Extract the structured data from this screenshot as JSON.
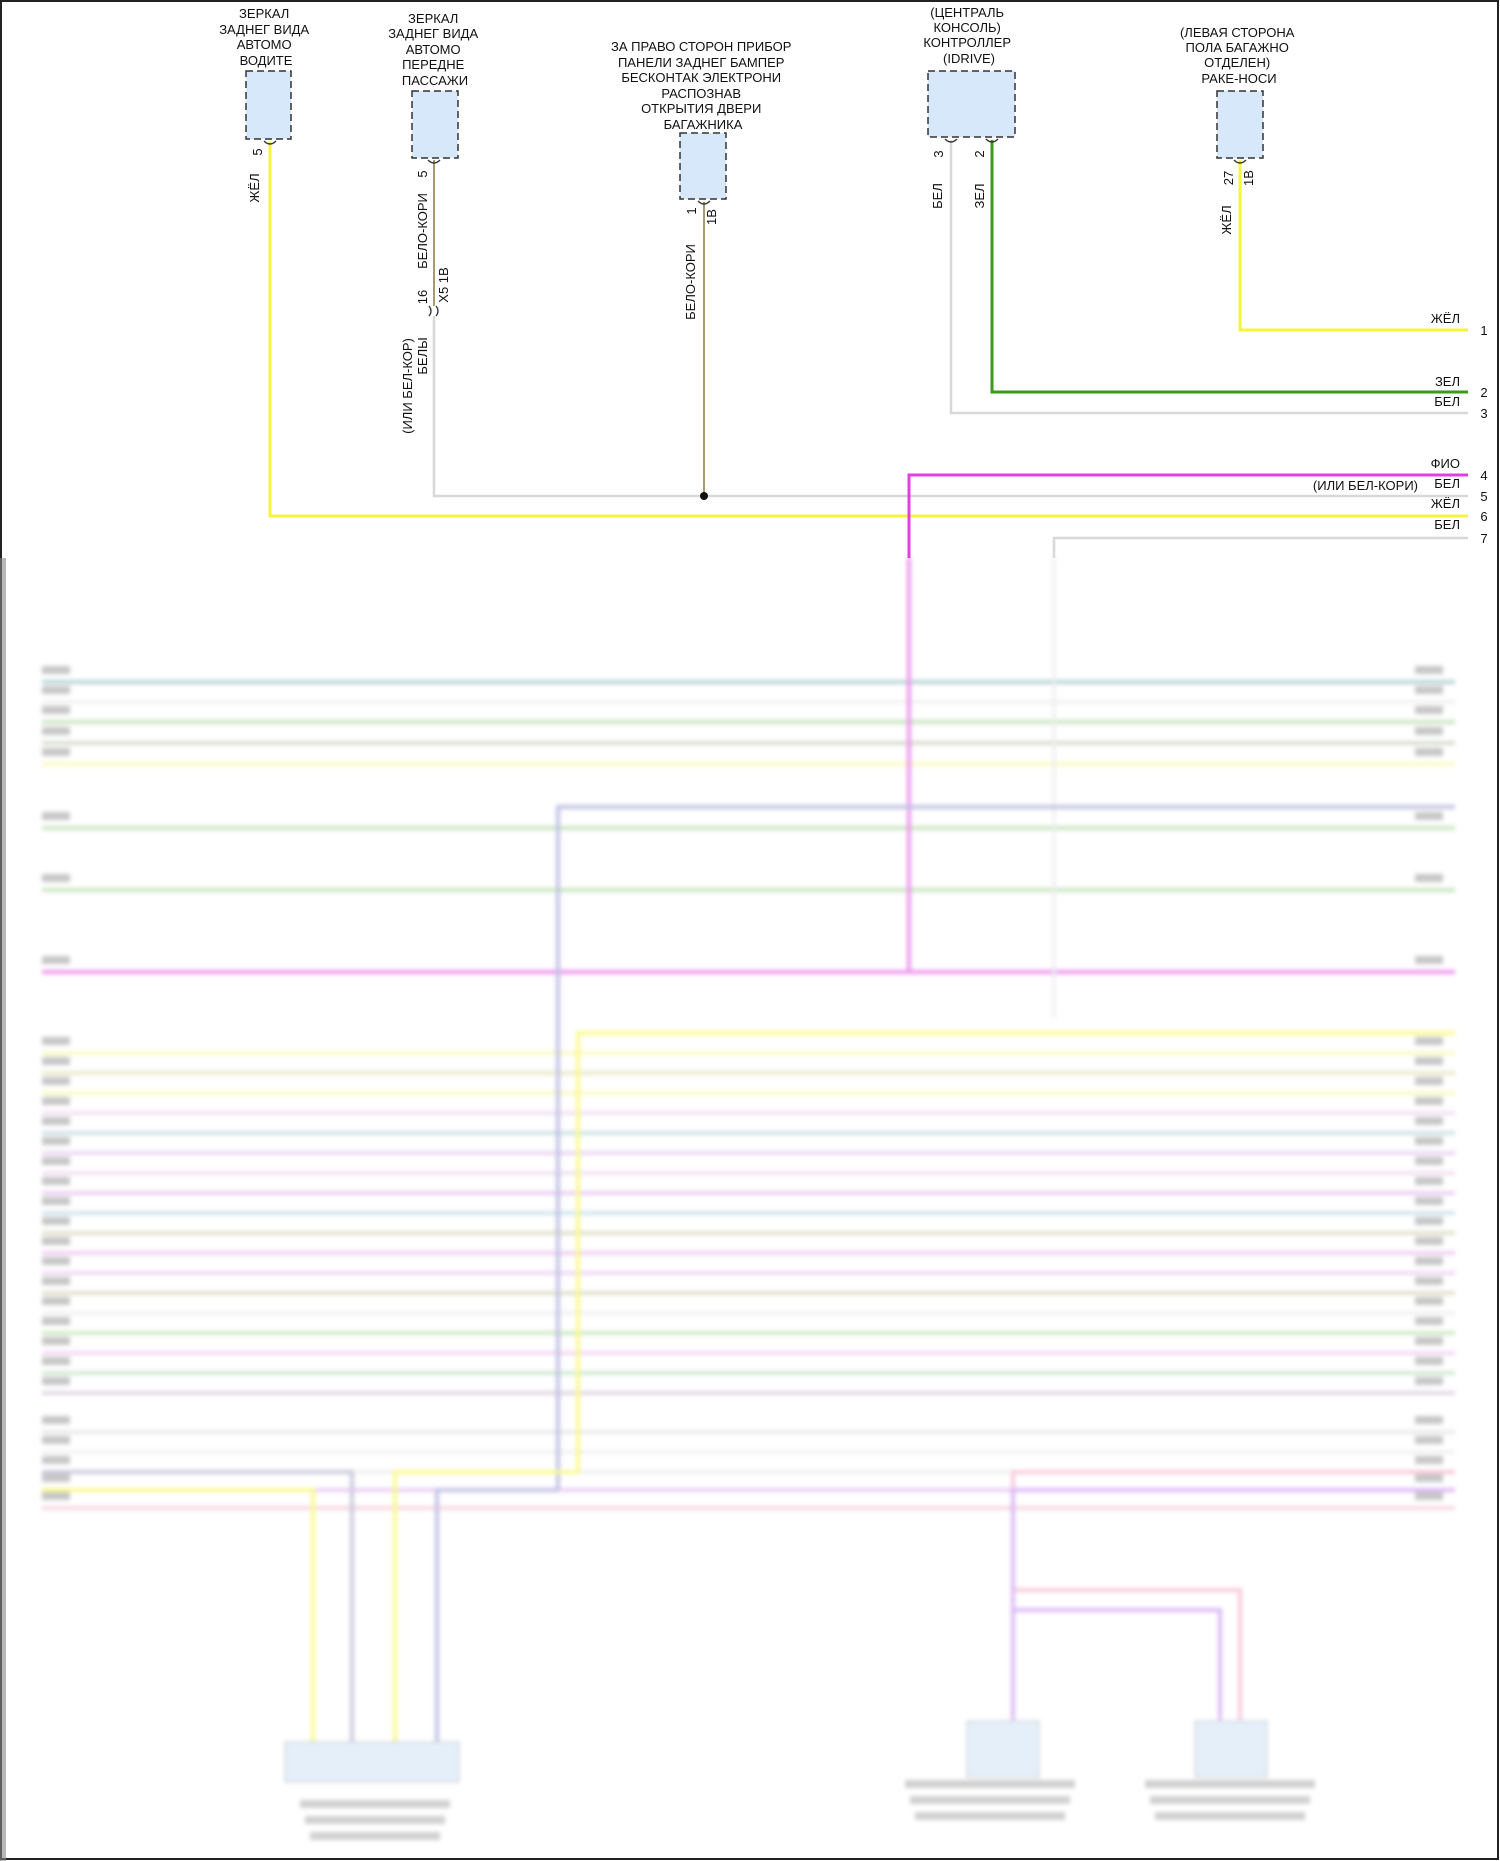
{
  "components": [
    {
      "name_lines": [
        "ЗЕРКАЛ",
        "ЗАДНЕГ ВИДА",
        "АВТОМО",
        "ВОДИТЕ"
      ],
      "pin": "5",
      "wire_color": "ЖЁЛ"
    },
    {
      "name_lines": [
        "ЗЕРКАЛ",
        "ЗАДНЕГ ВИДА",
        "АВТОМО",
        "ПЕРЕДНЕ",
        "ПАССАЖИ"
      ],
      "pin": "5",
      "wire_color": "БЕЛО-КОРИ",
      "inline_pin": "16",
      "inline_connector": "X5 1B",
      "wire_color_after": "БЕЛЫ",
      "wire_color_alt": "(ИЛИ БЕЛ-КОР)"
    },
    {
      "name_lines": [
        "ЗА ПРАВО СТОРОН ПРИБОР",
        "ПАНЕЛИ ЗАДНЕГ БАМПЕР",
        "БЕСКОНТАК ЭЛЕКТРОНИ",
        "РАСПОЗНАВ",
        "ОТКРЫТИЯ ДВЕРИ",
        "БАГАЖНИКА"
      ],
      "pin": "1",
      "connector": "1B",
      "wire_color": "БЕЛО-КОРИ"
    },
    {
      "name_lines": [
        "(ЦЕНТРАЛЬ",
        "КОНСОЛЬ)",
        "КОНТРОЛЛЕР",
        "(IDRIVE)"
      ],
      "pins": [
        {
          "pin": "3",
          "wire_color": "БЕЛ"
        },
        {
          "pin": "2",
          "wire_color": "ЗЕЛ"
        }
      ]
    },
    {
      "name_lines": [
        "(ЛЕВАЯ СТОРОНА",
        "ПОЛА БАГАЖНО",
        "ОТДЕЛЕН)",
        "РАКЕ-НОСИ"
      ],
      "pin": "27",
      "connector": "1B",
      "wire_color": "ЖЁЛ"
    }
  ],
  "right_terminals": [
    {
      "num": "1",
      "color_label": "ЖЁЛ",
      "color": "#f5f53a"
    },
    {
      "num": "2",
      "color_label": "ЗЕЛ",
      "color": "#3a9a1a"
    },
    {
      "num": "3",
      "color_label": "БЕЛ",
      "color": "#d8d8d8"
    },
    {
      "num": "4",
      "color_label": "ФИО",
      "color": "#e040e0"
    },
    {
      "num": "5",
      "color_label": "БЕЛ",
      "alt_label": "(ИЛИ БЕЛ-КОРИ)",
      "color": "#d8d8d8"
    },
    {
      "num": "6",
      "color_label": "ЖЁЛ",
      "color": "#f5f53a"
    },
    {
      "num": "7",
      "color_label": "БЕЛ",
      "color": "#d8d8d8"
    }
  ],
  "colors": {
    "connector_fill": "#d6e8fa",
    "brown_white": "#a89a6a"
  }
}
